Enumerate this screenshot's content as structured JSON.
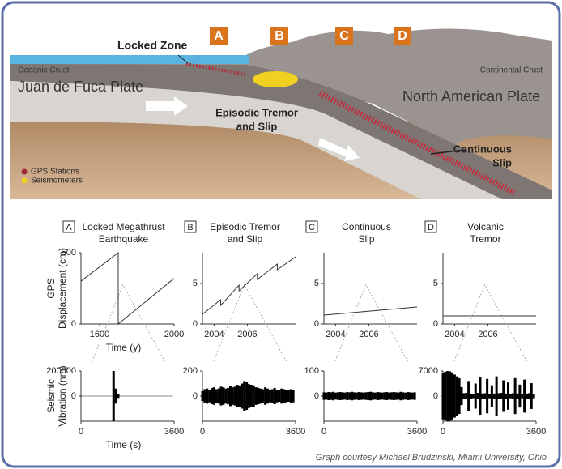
{
  "diagram": {
    "letters": [
      "A",
      "B",
      "C",
      "D"
    ],
    "locked_zone": "Locked Zone",
    "oceanic_crust": "Oceanic Crust",
    "continental_crust": "Continental Crust",
    "juan_de_fuca": "Juan de Fuca Plate",
    "north_american": "North American Plate",
    "episodic": [
      "Episodic Tremor",
      "and Slip"
    ],
    "continuous": [
      "Continuous",
      "Slip"
    ],
    "legend": [
      "GPS Stations",
      "Seismometers"
    ],
    "legend_colors": [
      "#a0283c",
      "#f0d020"
    ],
    "credit": "Graph courtesy Michael Brudzinski, Miami University, Ohio"
  },
  "chart_data": [
    {
      "type": "line",
      "letter": "A",
      "title": [
        "Locked Megathrust",
        "Earthquake"
      ],
      "ylabel": [
        "GPS",
        "Displacement (cm)"
      ],
      "xlabel": "Time (y)",
      "x": [
        1500,
        1700,
        1700,
        2000
      ],
      "values": [
        300,
        500,
        0,
        320
      ],
      "color": "#333333",
      "xlim": [
        1500,
        2000
      ],
      "ylim": [
        0,
        500
      ],
      "xticks": [
        1600,
        2000
      ],
      "yticks": [
        0,
        500
      ]
    },
    {
      "type": "line",
      "letter": "B",
      "title": [
        "Episodic Tremor",
        "and Slip"
      ],
      "x": [
        2003.3,
        2004.4,
        2004.4,
        2005.5,
        2005.5,
        2006.6,
        2006.6,
        2007.8,
        2007.8,
        2008.9
      ],
      "values": [
        1.2,
        3.0,
        2.3,
        4.8,
        4.1,
        6.2,
        5.5,
        7.4,
        6.7,
        8.3
      ],
      "color": "#333333",
      "xlim": [
        2003.3,
        2008.9
      ],
      "ylim": [
        0,
        8.8
      ],
      "xticks": [
        2004,
        2006
      ],
      "yticks": [
        0,
        5
      ]
    },
    {
      "type": "line",
      "letter": "C",
      "title": [
        "Continuous",
        "Slip"
      ],
      "x": [
        2003.3,
        2008.9
      ],
      "values": [
        1.1,
        2.1
      ],
      "color": "#333333",
      "xlim": [
        2003.3,
        2008.9
      ],
      "ylim": [
        0,
        8.8
      ],
      "xticks": [
        2004,
        2006
      ],
      "yticks": [
        0,
        5
      ]
    },
    {
      "type": "line",
      "letter": "D",
      "title": [
        "Volcanic",
        "Tremor"
      ],
      "x": [
        2003.3,
        2008.9
      ],
      "values": [
        1.0,
        1.0
      ],
      "color": "#333333",
      "xlim": [
        2003.3,
        2008.9
      ],
      "ylim": [
        0,
        8.8
      ],
      "xticks": [
        2004,
        2006
      ],
      "yticks": [
        0,
        5
      ]
    },
    {
      "type": "waveform",
      "ylabel": [
        "Seismic",
        "Vibration (nm)"
      ],
      "xlabel": "Time (s)",
      "color": "#000000",
      "x": [
        0,
        90,
        180,
        270,
        360,
        450,
        540,
        630,
        720,
        810,
        900,
        990,
        1080,
        1170,
        1260,
        1350,
        1440,
        1530,
        1620,
        1710,
        1800,
        1890,
        1980,
        2070,
        2160,
        2250,
        2340,
        2430,
        2520,
        2610,
        2700,
        2790,
        2880,
        2970,
        3060,
        3150,
        3240,
        3330,
        3420,
        3510
      ],
      "values": [
        1500,
        1500,
        1500,
        1500,
        1500,
        1500,
        1500,
        1500,
        1500,
        1500,
        1500,
        1500,
        1500,
        1500,
        200000,
        60000,
        15000,
        1500,
        1500,
        1500,
        1500,
        1500,
        1500,
        1500,
        1500,
        1500,
        1500,
        1500,
        1500,
        1500,
        1500,
        1500,
        1500,
        1500,
        1500,
        1500,
        1500,
        1500,
        1500,
        1500
      ],
      "xlim": [
        0,
        3600
      ],
      "ylim": [
        -200000,
        200000
      ],
      "xticks": [
        0,
        3600
      ],
      "yticks": [
        0,
        200000
      ]
    },
    {
      "type": "waveform",
      "color": "#000000",
      "x": [
        0,
        90,
        180,
        270,
        360,
        450,
        540,
        630,
        720,
        810,
        900,
        990,
        1080,
        1170,
        1260,
        1350,
        1440,
        1530,
        1620,
        1710,
        1800,
        1890,
        1980,
        2070,
        2160,
        2250,
        2340,
        2430,
        2520,
        2610,
        2700,
        2790,
        2880,
        2970,
        3060,
        3150,
        3240,
        3330,
        3420,
        3510
      ],
      "values": [
        40,
        55,
        60,
        50,
        65,
        70,
        55,
        60,
        75,
        70,
        60,
        65,
        80,
        70,
        75,
        90,
        85,
        100,
        120,
        110,
        95,
        90,
        85,
        70,
        65,
        60,
        55,
        70,
        60,
        50,
        55,
        65,
        50,
        45,
        60,
        55,
        50,
        45,
        55,
        50
      ],
      "xlim": [
        0,
        3600
      ],
      "ylim": [
        -200,
        200
      ],
      "xticks": [
        0,
        3600
      ],
      "yticks": [
        0,
        200
      ]
    },
    {
      "type": "waveform",
      "color": "#000000",
      "x": [
        0,
        90,
        180,
        270,
        360,
        450,
        540,
        630,
        720,
        810,
        900,
        990,
        1080,
        1170,
        1260,
        1350,
        1440,
        1530,
        1620,
        1710,
        1800,
        1890,
        1980,
        2070,
        2160,
        2250,
        2340,
        2430,
        2520,
        2610,
        2700,
        2790,
        2880,
        2970,
        3060,
        3150,
        3240,
        3330,
        3420,
        3510
      ],
      "values": [
        15,
        14,
        16,
        15,
        17,
        14,
        15,
        16,
        15,
        14,
        16,
        15,
        17,
        15,
        14,
        16,
        15,
        14,
        15,
        16,
        17,
        15,
        14,
        16,
        15,
        14,
        15,
        16,
        14,
        15,
        16,
        15,
        14,
        17,
        15,
        14,
        16,
        15,
        14,
        15
      ],
      "xlim": [
        0,
        3600
      ],
      "ylim": [
        -100,
        100
      ],
      "xticks": [
        0,
        3600
      ],
      "yticks": [
        0,
        100
      ]
    },
    {
      "type": "waveform",
      "color": "#000000",
      "x": [
        0,
        90,
        180,
        270,
        360,
        450,
        540,
        630,
        720,
        810,
        900,
        990,
        1080,
        1170,
        1260,
        1350,
        1440,
        1530,
        1620,
        1710,
        1800,
        1890,
        1980,
        2070,
        2160,
        2250,
        2340,
        2430,
        2520,
        2610,
        2700,
        2790,
        2880,
        2970,
        3060,
        3150,
        3240,
        3330,
        3420,
        3510
      ],
      "values": [
        6500,
        6800,
        7000,
        6900,
        6600,
        6000,
        5500,
        5000,
        2500,
        800,
        900,
        4200,
        700,
        600,
        3500,
        900,
        5200,
        700,
        800,
        4800,
        600,
        3000,
        700,
        5500,
        800,
        900,
        4400,
        700,
        3800,
        600,
        800,
        5000,
        700,
        3200,
        600,
        4600,
        700,
        800,
        3600,
        600
      ],
      "xlim": [
        0,
        3600
      ],
      "ylim": [
        -7000,
        7000
      ],
      "xticks": [
        0,
        3600
      ],
      "yticks": [
        0,
        7000
      ]
    }
  ]
}
